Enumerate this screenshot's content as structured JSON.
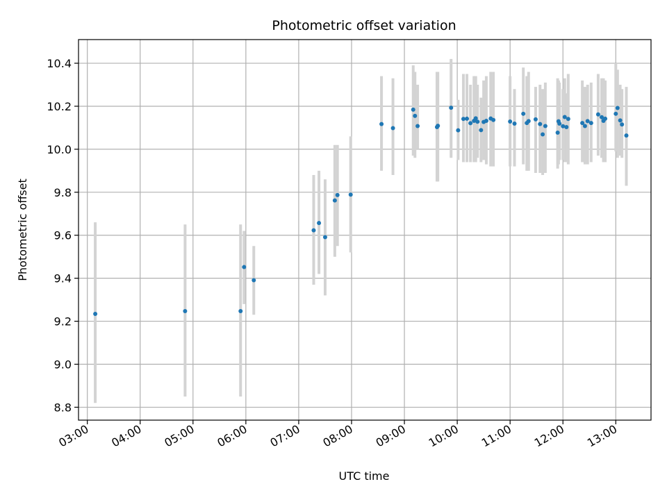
{
  "chart_data": {
    "type": "scatter",
    "title": "Photometric offset variation",
    "xlabel": "UTC time",
    "ylabel": "Photometric offset",
    "x_ticks": [
      "03:00",
      "04:00",
      "05:00",
      "06:00",
      "07:00",
      "08:00",
      "09:00",
      "10:00",
      "11:00",
      "12:00",
      "13:00"
    ],
    "y_ticks": [
      "8.8",
      "9.0",
      "9.2",
      "9.4",
      "9.6",
      "9.8",
      "10.0",
      "10.2",
      "10.4"
    ],
    "xlim": [
      "02:50",
      "13:40"
    ],
    "ylim": [
      8.74,
      10.51
    ],
    "grid": true,
    "x": [
      "03:09",
      "04:51",
      "05:54",
      "05:58",
      "06:09",
      "07:17",
      "07:23",
      "07:30",
      "07:41",
      "07:44",
      "07:59",
      "08:34",
      "08:47",
      "09:10",
      "09:12",
      "09:15",
      "09:37",
      "09:38",
      "09:53",
      "10:01",
      "10:07",
      "10:11",
      "10:15",
      "10:19",
      "10:21",
      "10:23",
      "10:27",
      "10:30",
      "10:33",
      "10:38",
      "10:41",
      "11:00",
      "11:05",
      "11:15",
      "11:19",
      "11:21",
      "11:29",
      "11:34",
      "11:37",
      "11:40",
      "11:54",
      "11:55",
      "11:56",
      "12:00",
      "12:02",
      "12:04",
      "12:06",
      "12:22",
      "12:25",
      "12:28",
      "12:32",
      "12:40",
      "12:44",
      "12:46",
      "12:48",
      "13:00",
      "13:02",
      "13:05",
      "13:07",
      "13:12"
    ],
    "values": [
      9.234,
      9.247,
      9.247,
      9.452,
      9.391,
      9.623,
      9.657,
      9.591,
      9.762,
      9.787,
      9.789,
      10.117,
      10.098,
      10.184,
      10.155,
      10.108,
      10.103,
      10.109,
      10.193,
      10.088,
      10.141,
      10.142,
      10.121,
      10.132,
      10.144,
      10.128,
      10.089,
      10.127,
      10.132,
      10.143,
      10.136,
      10.129,
      10.119,
      10.165,
      10.122,
      10.131,
      10.139,
      10.117,
      10.069,
      10.108,
      10.077,
      10.13,
      10.119,
      10.107,
      10.15,
      10.103,
      10.141,
      10.122,
      10.108,
      10.131,
      10.122,
      10.162,
      10.149,
      10.132,
      10.142,
      10.165,
      10.192,
      10.134,
      10.115,
      10.064
    ],
    "error_low": [
      8.82,
      8.85,
      8.85,
      9.28,
      9.23,
      9.37,
      9.42,
      9.32,
      9.5,
      9.55,
      9.52,
      9.9,
      9.88,
      9.97,
      9.96,
      10.0,
      9.85,
      9.85,
      9.96,
      9.95,
      9.94,
      9.94,
      9.94,
      9.94,
      9.94,
      9.96,
      9.94,
      9.95,
      9.93,
      9.92,
      9.92,
      9.92,
      9.92,
      9.93,
      9.9,
      9.9,
      9.89,
      9.89,
      9.88,
      9.89,
      9.91,
      9.93,
      9.95,
      9.95,
      9.94,
      9.94,
      9.93,
      9.94,
      9.93,
      9.93,
      9.94,
      9.97,
      9.96,
      9.94,
      9.94,
      9.99,
      9.96,
      9.97,
      9.96,
      9.83
    ],
    "error_high": [
      9.66,
      9.65,
      9.65,
      9.62,
      9.55,
      9.88,
      9.9,
      9.86,
      10.02,
      10.02,
      10.06,
      10.34,
      10.33,
      10.39,
      10.36,
      10.3,
      10.36,
      10.36,
      10.42,
      10.23,
      10.35,
      10.35,
      10.3,
      10.34,
      10.34,
      10.3,
      10.24,
      10.32,
      10.34,
      10.36,
      10.36,
      10.34,
      10.28,
      10.38,
      10.34,
      10.36,
      10.29,
      10.3,
      10.28,
      10.31,
      10.33,
      10.32,
      10.31,
      10.28,
      10.33,
      10.26,
      10.35,
      10.32,
      10.29,
      10.3,
      10.31,
      10.35,
      10.33,
      10.33,
      10.32,
      10.4,
      10.37,
      10.3,
      10.28,
      10.29
    ],
    "marker_color": "#1f77b4",
    "errorbar_color": "#d3d3d3",
    "grid_color": "#b0b0b0"
  }
}
